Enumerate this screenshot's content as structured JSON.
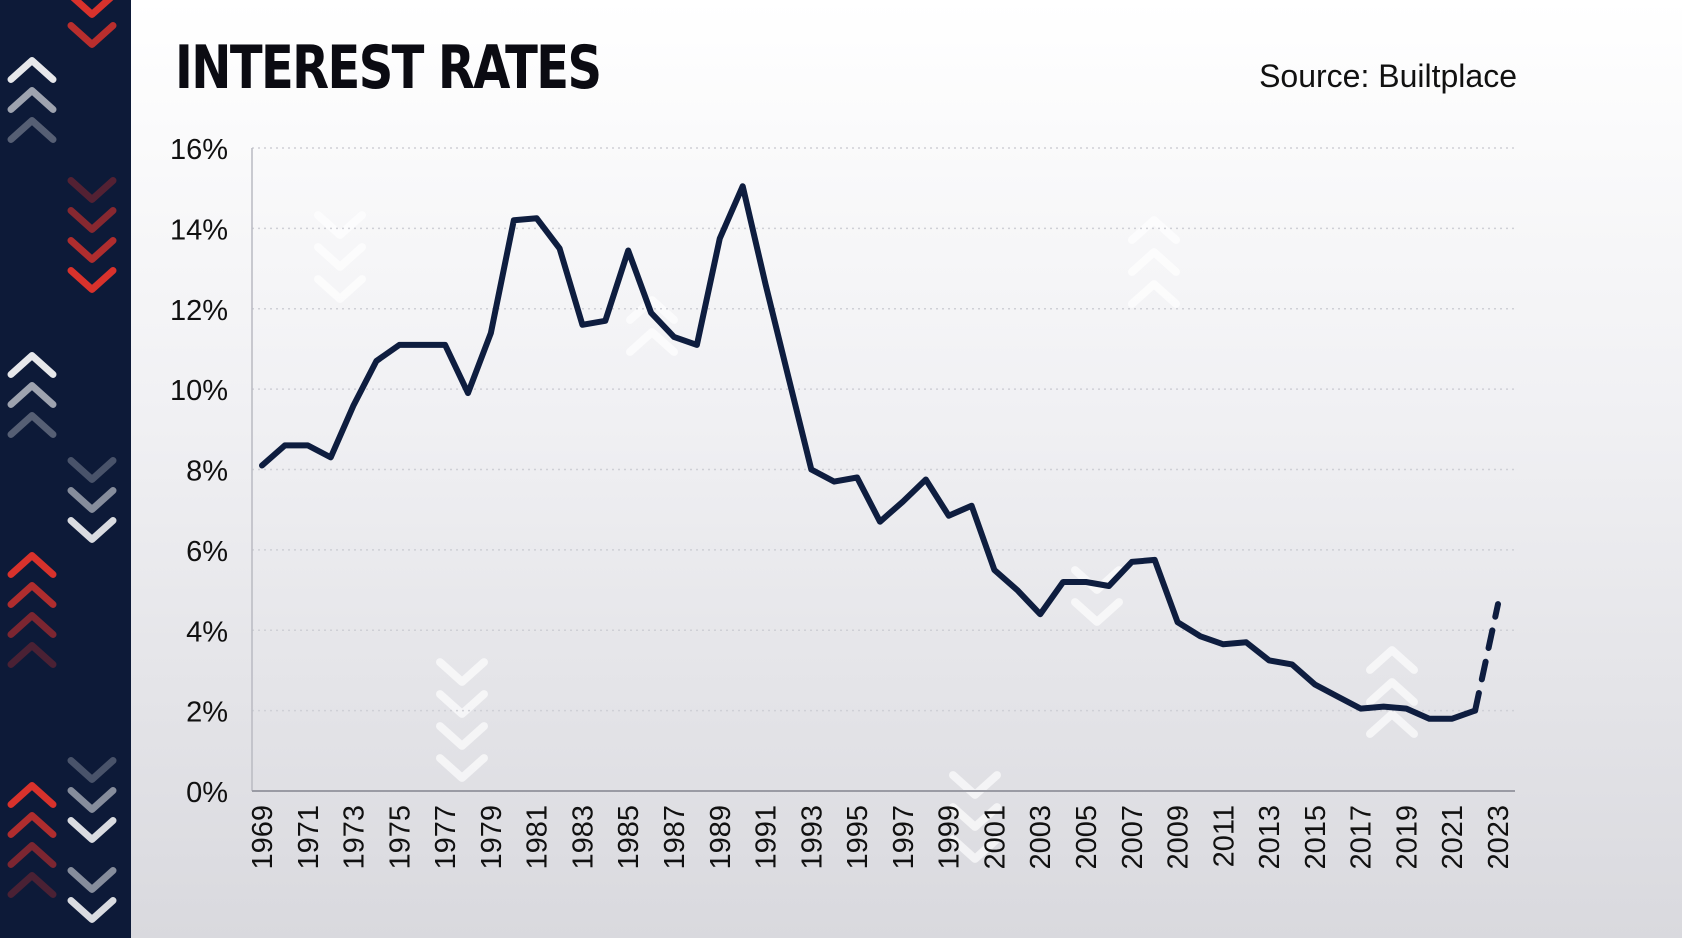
{
  "title": "INTEREST RATES",
  "source": "Source: Builtplace",
  "colors": {
    "line": "#0e1d3f",
    "side_panel": "#0d1a38",
    "chevron_red": "#d8322c",
    "chevron_white": "#ffffff",
    "grid": "#cfd0d6"
  },
  "decor_icons": [
    "chevron-up-icon",
    "chevron-down-icon"
  ],
  "chart_data": {
    "type": "line",
    "title": "INTEREST RATES",
    "xlabel": "",
    "ylabel": "",
    "ylim": [
      0,
      16
    ],
    "xlim": [
      1969,
      2023
    ],
    "y_ticks": [
      "0%",
      "2%",
      "4%",
      "6%",
      "8%",
      "10%",
      "12%",
      "14%",
      "16%"
    ],
    "y_tick_values": [
      0,
      2,
      4,
      6,
      8,
      10,
      12,
      14,
      16
    ],
    "x_ticks": [
      "1969",
      "1971",
      "1973",
      "1975",
      "1977",
      "1979",
      "1981",
      "1983",
      "1985",
      "1987",
      "1989",
      "1991",
      "1993",
      "1995",
      "1997",
      "1999",
      "2001",
      "2003",
      "2005",
      "2007",
      "2009",
      "2011",
      "2013",
      "2015",
      "2017",
      "2019",
      "2021",
      "2023"
    ],
    "x_tick_values": [
      1969,
      1971,
      1973,
      1975,
      1977,
      1979,
      1981,
      1983,
      1985,
      1987,
      1989,
      1991,
      1993,
      1995,
      1997,
      1999,
      2001,
      2003,
      2005,
      2007,
      2009,
      2011,
      2013,
      2015,
      2017,
      2019,
      2021,
      2023
    ],
    "grid": true,
    "series": [
      {
        "style": "solid",
        "x": [
          1969,
          1970,
          1971,
          1972,
          1973,
          1974,
          1975,
          1976,
          1977,
          1978,
          1979,
          1980,
          1981,
          1982,
          1983,
          1984,
          1985,
          1986,
          1987,
          1988,
          1989,
          1990,
          1991,
          1992,
          1993,
          1994,
          1995,
          1996,
          1997,
          1998,
          1999,
          2000,
          2001,
          2002,
          2003,
          2004,
          2005,
          2006,
          2007,
          2008,
          2009,
          2010,
          2011,
          2012,
          2013,
          2014,
          2015,
          2016,
          2017,
          2018,
          2019,
          2020,
          2021,
          2022
        ],
        "values": [
          8.1,
          8.6,
          8.6,
          8.3,
          9.6,
          10.7,
          11.1,
          11.1,
          11.1,
          9.9,
          11.4,
          14.2,
          14.25,
          13.5,
          11.6,
          11.7,
          13.45,
          11.9,
          11.3,
          11.1,
          13.75,
          15.05,
          12.6,
          10.3,
          8.0,
          7.7,
          7.8,
          6.7,
          7.2,
          7.75,
          6.85,
          7.1,
          5.5,
          5.0,
          4.4,
          5.2,
          5.2,
          5.1,
          5.7,
          5.75,
          4.2,
          3.85,
          3.65,
          3.7,
          3.25,
          3.15,
          2.65,
          2.35,
          2.05,
          2.1,
          2.05,
          1.8,
          1.8,
          2.0
        ]
      },
      {
        "style": "dashed",
        "x": [
          2022,
          2023
        ],
        "values": [
          2.0,
          4.65
        ]
      }
    ]
  }
}
